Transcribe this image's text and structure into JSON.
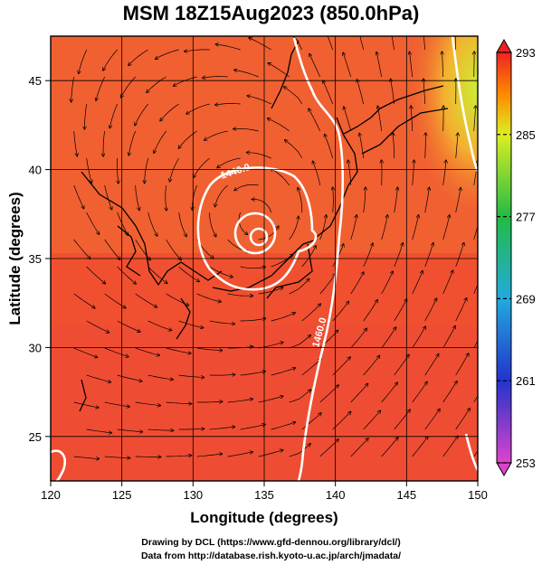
{
  "title": "MSM 18Z15Aug2023 (850.0hPa)",
  "credits": {
    "line1": "Drawing by DCL (https://www.gfd-dennou.org/library/dcl/)",
    "line2": "Data from http://database.rish.kyoto-u.ac.jp/arch/jmadata/"
  },
  "chart_data": {
    "type": "heatmap",
    "title": "MSM 18Z15Aug2023 (850.0hPa)",
    "xlabel": "Longitude (degrees)",
    "ylabel": "Latitude  (degrees)",
    "xlim": [
      120,
      150
    ],
    "ylim": [
      22.5,
      47.5
    ],
    "xticks": [
      120,
      125,
      130,
      135,
      140,
      145,
      150
    ],
    "yticks": [
      25,
      30,
      35,
      40,
      45
    ],
    "grid": true,
    "colorbar": {
      "min": 253,
      "max": 293,
      "ticks": [
        253,
        261,
        269,
        277,
        285,
        293
      ],
      "colors": [
        "#dd44cc",
        "#2233cc",
        "#22aadd",
        "#22bb44",
        "#ddee22",
        "#ee2222"
      ]
    },
    "contour_labels": [
      "1440.0",
      "1460.0"
    ],
    "vortex_center": {
      "lon": 134.5,
      "lat": 37.2
    },
    "overlays": [
      "coastlines",
      "streamlines",
      "geopotential-height-contours"
    ]
  }
}
